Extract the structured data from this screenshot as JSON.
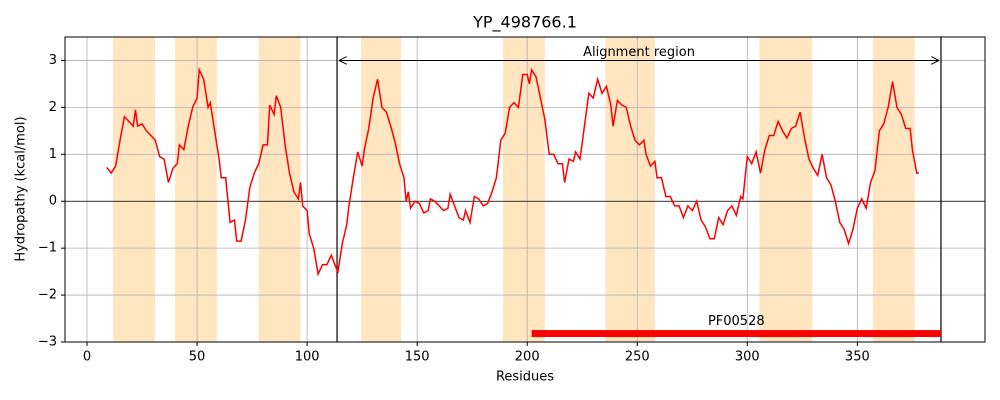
{
  "chart_data": {
    "type": "line",
    "title": "YP_498766.1",
    "xlabel": "Residues",
    "ylabel": "Hydropathy (kcal/mol)",
    "color": "#ff0000",
    "grid": true,
    "hline": 0,
    "xlim": [
      -10,
      408
    ],
    "ylim": [
      -3,
      3.5
    ],
    "xticks": [
      0,
      50,
      100,
      150,
      200,
      250,
      300,
      350
    ],
    "yticks": [
      {
        "value": -3,
        "label": "−3"
      },
      {
        "value": -2,
        "label": "−2"
      },
      {
        "value": -1,
        "label": "−1"
      },
      0,
      1,
      2,
      3
    ],
    "highlight_color": "#ffe6c0",
    "highlight_regions": [
      [
        11.8,
        30.9
      ],
      [
        40,
        59
      ],
      [
        78,
        97
      ],
      [
        124.5,
        142.7
      ],
      [
        189,
        208
      ],
      [
        235.5,
        258
      ],
      [
        305.5,
        329.5
      ],
      [
        357,
        376
      ]
    ],
    "alignment_region": {
      "label": "Alignment region",
      "start": 113.6,
      "end": 388,
      "y": 3
    },
    "domain": {
      "label": "PF00528",
      "start": 202,
      "end": 388,
      "y": -2.82,
      "color": "#ff0000"
    },
    "x": [
      9,
      11,
      13,
      15,
      17,
      19,
      21,
      22,
      23,
      25,
      27,
      29,
      31,
      33,
      35,
      37,
      39,
      41,
      42,
      44,
      46,
      48,
      50,
      51,
      53,
      55,
      56,
      58,
      60,
      61,
      63,
      65,
      67,
      68,
      70,
      72,
      74,
      76,
      78,
      80,
      82,
      83,
      85,
      86,
      88,
      90,
      92,
      94,
      96,
      97,
      98,
      100,
      101,
      103,
      105,
      107,
      109,
      111,
      113,
      114,
      116,
      118,
      119,
      121,
      123,
      125,
      126,
      128,
      130,
      132,
      134,
      136,
      138,
      140,
      142,
      144,
      145,
      146,
      147,
      149,
      151,
      153,
      155,
      156,
      158,
      160,
      162,
      164,
      165,
      167,
      169,
      171,
      172,
      174,
      176,
      178,
      180,
      182,
      184,
      186,
      188,
      190,
      192,
      194,
      196,
      198,
      200,
      201,
      202,
      204,
      206,
      208,
      210,
      212,
      214,
      216,
      217,
      219,
      221,
      222,
      224,
      226,
      228,
      230,
      232,
      234,
      236,
      238,
      239,
      241,
      243,
      245,
      247,
      249,
      251,
      253,
      254,
      256,
      258,
      259,
      261,
      263,
      265,
      267,
      269,
      271,
      273,
      275,
      277,
      279,
      281,
      283,
      285,
      287,
      289,
      291,
      293,
      295,
      297,
      298,
      300,
      302,
      304,
      306,
      308,
      310,
      312,
      314,
      316,
      318,
      320,
      322,
      324,
      326,
      328,
      330,
      332,
      334,
      336,
      338,
      340,
      342,
      344,
      346,
      348,
      350,
      352,
      354,
      356,
      358,
      360,
      362,
      364,
      366,
      368,
      370,
      372,
      374,
      375,
      377,
      378
    ],
    "values": [
      0.72,
      0.6,
      0.75,
      1.3,
      1.8,
      1.7,
      1.6,
      1.95,
      1.6,
      1.65,
      1.5,
      1.4,
      1.3,
      0.95,
      0.9,
      0.4,
      0.7,
      0.8,
      1.2,
      1.1,
      1.6,
      2.0,
      2.2,
      2.8,
      2.6,
      2.0,
      2.1,
      1.5,
      0.9,
      0.5,
      0.5,
      -0.45,
      -0.4,
      -0.85,
      -0.85,
      -0.4,
      0.3,
      0.6,
      0.8,
      1.2,
      1.2,
      2.05,
      1.85,
      2.25,
      2.0,
      1.2,
      0.6,
      0.2,
      0.05,
      0.4,
      -0.1,
      -0.2,
      -0.7,
      -1.0,
      -1.55,
      -1.35,
      -1.35,
      -1.15,
      -1.4,
      -1.5,
      -0.9,
      -0.5,
      -0.1,
      0.5,
      1.05,
      0.75,
      1.1,
      1.55,
      2.2,
      2.6,
      2.0,
      1.9,
      1.6,
      1.25,
      0.8,
      0.5,
      0.0,
      0.2,
      -0.15,
      0.0,
      -0.05,
      -0.25,
      -0.2,
      0.05,
      0.0,
      -0.1,
      -0.2,
      -0.15,
      0.15,
      -0.1,
      -0.35,
      -0.4,
      -0.2,
      -0.45,
      0.1,
      0.05,
      -0.1,
      -0.05,
      0.2,
      0.5,
      1.3,
      1.45,
      2.0,
      2.1,
      2.0,
      2.7,
      2.7,
      2.5,
      2.8,
      2.65,
      2.2,
      1.75,
      1.0,
      1.0,
      0.8,
      0.8,
      0.4,
      0.9,
      0.85,
      1.05,
      0.9,
      1.6,
      2.3,
      2.2,
      2.6,
      2.3,
      2.45,
      2.05,
      1.6,
      2.15,
      2.05,
      2.0,
      1.6,
      1.3,
      1.2,
      1.3,
      1.0,
      0.75,
      0.85,
      0.5,
      0.5,
      0.1,
      0.1,
      -0.1,
      -0.1,
      -0.35,
      -0.1,
      -0.2,
      0.0,
      -0.4,
      -0.55,
      -0.8,
      -0.8,
      -0.35,
      -0.5,
      -0.2,
      -0.1,
      -0.3,
      0.1,
      0.05,
      0.95,
      0.8,
      1.05,
      0.6,
      1.1,
      1.4,
      1.4,
      1.7,
      1.5,
      1.35,
      1.55,
      1.6,
      1.9,
      1.35,
      0.9,
      0.7,
      0.55,
      1.0,
      0.5,
      0.35,
      0.0,
      -0.45,
      -0.6,
      -0.9,
      -0.6,
      -0.15,
      0.05,
      -0.15,
      0.4,
      0.65,
      1.5,
      1.65,
      2.0,
      2.55,
      2.0,
      1.85,
      1.55,
      1.55,
      1.1,
      0.6,
      0.6
    ]
  }
}
